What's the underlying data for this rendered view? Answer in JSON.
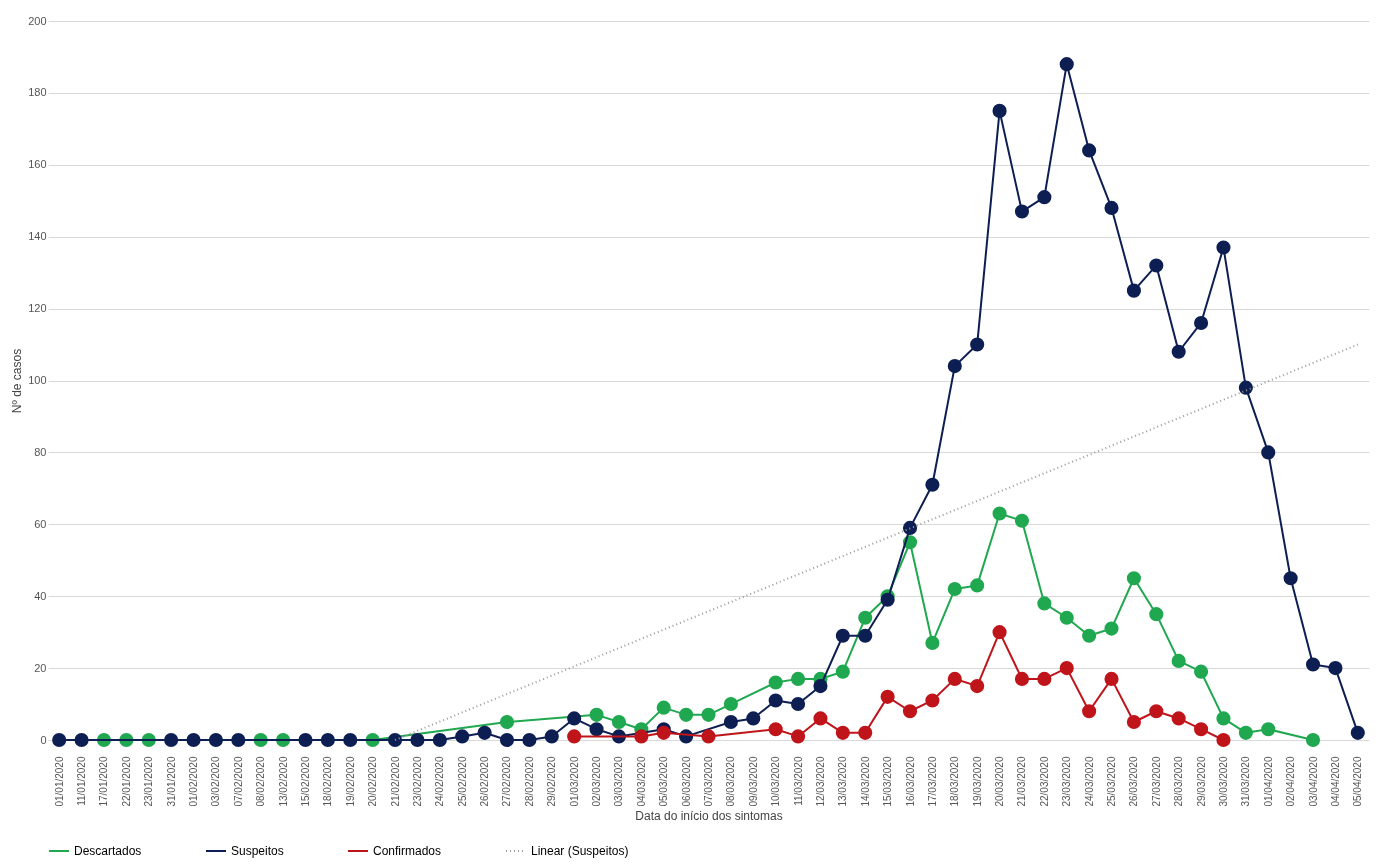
{
  "chart_data": {
    "type": "line",
    "xlabel": "Data do início dos sintomas",
    "ylabel": "Nº de casos",
    "categories": [
      "01/01/2020",
      "11/01/2020",
      "17/01/2020",
      "22/01/2020",
      "23/01/2020",
      "31/01/2020",
      "01/02/2020",
      "03/02/2020",
      "07/02/2020",
      "08/02/2020",
      "13/02/2020",
      "15/02/2020",
      "18/02/2020",
      "19/02/2020",
      "20/02/2020",
      "21/02/2020",
      "23/02/2020",
      "24/02/2020",
      "25/02/2020",
      "26/02/2020",
      "27/02/2020",
      "28/02/2020",
      "29/02/2020",
      "01/03/2020",
      "02/03/2020",
      "03/03/2020",
      "04/03/2020",
      "05/03/2020",
      "06/03/2020",
      "07/03/2020",
      "08/03/2020",
      "09/03/2020",
      "10/03/2020",
      "11/03/2020",
      "12/03/2020",
      "13/03/2020",
      "14/03/2020",
      "15/03/2020",
      "16/03/2020",
      "17/03/2020",
      "18/03/2020",
      "19/03/2020",
      "20/03/2020",
      "21/03/2020",
      "22/03/2020",
      "23/03/2020",
      "24/03/2020",
      "25/03/2020",
      "26/03/2020",
      "27/03/2020",
      "28/03/2020",
      "29/03/2020",
      "30/03/2020",
      "31/03/2020",
      "01/04/2020",
      "02/04/2020",
      "03/04/2020",
      "04/04/2020",
      "05/04/2020"
    ],
    "series": [
      {
        "name": "Descartados",
        "color": "#1fa84f",
        "marker": "circle",
        "line_style": "solid",
        "values": [
          null,
          null,
          0,
          0,
          0,
          null,
          null,
          null,
          null,
          0,
          0,
          null,
          null,
          null,
          0,
          null,
          null,
          null,
          null,
          null,
          5,
          null,
          null,
          null,
          7,
          5,
          3,
          9,
          7,
          7,
          10,
          null,
          16,
          17,
          17,
          19,
          34,
          40,
          55,
          27,
          42,
          43,
          63,
          61,
          38,
          34,
          29,
          31,
          45,
          35,
          22,
          19,
          6,
          2,
          3,
          null,
          0,
          null,
          null
        ]
      },
      {
        "name": "Suspeitos",
        "color": "#0d1f52",
        "marker": "circle",
        "line_style": "solid",
        "values": [
          0,
          0,
          null,
          null,
          null,
          0,
          0,
          0,
          0,
          null,
          null,
          0,
          0,
          0,
          null,
          0,
          0,
          0,
          1,
          2,
          0,
          0,
          1,
          6,
          3,
          1,
          null,
          3,
          1,
          null,
          5,
          6,
          11,
          10,
          15,
          29,
          29,
          39,
          59,
          71,
          104,
          110,
          175,
          147,
          151,
          188,
          164,
          148,
          125,
          132,
          108,
          116,
          137,
          98,
          80,
          45,
          21,
          20,
          2
        ]
      },
      {
        "name": "Confirmados",
        "color": "#c0141b",
        "marker": "circle",
        "line_style": "solid",
        "values": [
          null,
          null,
          null,
          null,
          null,
          null,
          null,
          null,
          null,
          null,
          null,
          null,
          null,
          null,
          null,
          null,
          null,
          null,
          null,
          null,
          null,
          null,
          null,
          1,
          null,
          null,
          1,
          2,
          null,
          1,
          null,
          null,
          3,
          1,
          6,
          2,
          2,
          12,
          8,
          11,
          17,
          15,
          30,
          17,
          17,
          20,
          8,
          17,
          5,
          8,
          6,
          3,
          0,
          null,
          null,
          null,
          null,
          null,
          null
        ]
      },
      {
        "name": "Linear (Suspeitos)",
        "type": "line",
        "color": "#9a9a9a",
        "marker": "none",
        "line_style": "dotted",
        "x": [
          "21/02/2020",
          "05/04/2020"
        ],
        "values": [
          0,
          110
        ]
      }
    ],
    "ylim": [
      0,
      200
    ],
    "yticks": [
      0,
      20,
      40,
      60,
      80,
      100,
      120,
      140,
      160,
      180,
      200
    ],
    "grid": "y",
    "legend": "bottom"
  }
}
